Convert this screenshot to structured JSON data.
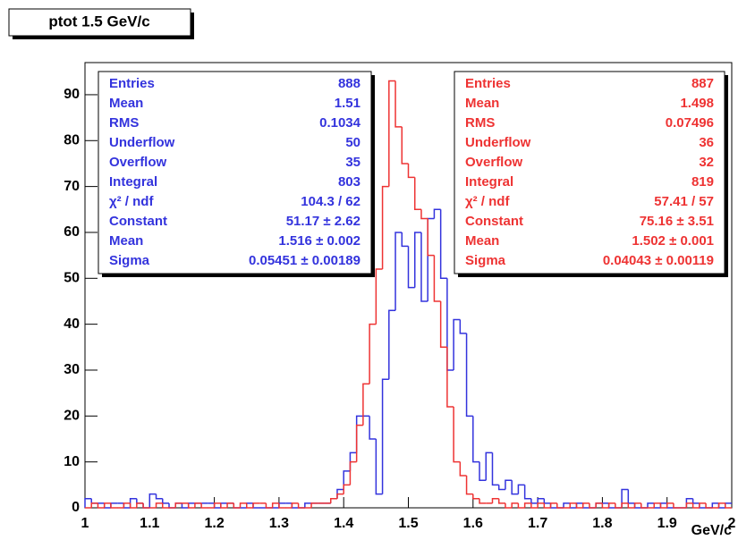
{
  "chart_data": {
    "type": "histogram",
    "title": "ptot 1.5 GeV/c",
    "x_label": "GeV/c",
    "xlim": [
      1,
      2
    ],
    "ylim": [
      0,
      97
    ],
    "xticks": [
      1,
      1.1,
      1.2,
      1.3,
      1.4,
      1.5,
      1.6,
      1.7,
      1.8,
      1.9,
      2
    ],
    "yticks": [
      0,
      10,
      20,
      30,
      40,
      50,
      60,
      70,
      80,
      90
    ],
    "bins": [
      1.0,
      1.01,
      1.02,
      1.03,
      1.04,
      1.05,
      1.06,
      1.07,
      1.08,
      1.09,
      1.1,
      1.11,
      1.12,
      1.13,
      1.14,
      1.15,
      1.16,
      1.17,
      1.18,
      1.19,
      1.2,
      1.21,
      1.22,
      1.23,
      1.24,
      1.25,
      1.26,
      1.27,
      1.28,
      1.29,
      1.3,
      1.31,
      1.32,
      1.33,
      1.34,
      1.35,
      1.36,
      1.37,
      1.38,
      1.39,
      1.4,
      1.41,
      1.42,
      1.43,
      1.44,
      1.45,
      1.46,
      1.47,
      1.48,
      1.49,
      1.5,
      1.51,
      1.52,
      1.53,
      1.54,
      1.55,
      1.56,
      1.57,
      1.58,
      1.59,
      1.6,
      1.61,
      1.62,
      1.63,
      1.64,
      1.65,
      1.66,
      1.67,
      1.68,
      1.69,
      1.7,
      1.71,
      1.72,
      1.73,
      1.74,
      1.75,
      1.76,
      1.77,
      1.78,
      1.79,
      1.8,
      1.81,
      1.82,
      1.83,
      1.84,
      1.85,
      1.86,
      1.87,
      1.88,
      1.89,
      1.9,
      1.91,
      1.92,
      1.93,
      1.94,
      1.95,
      1.96,
      1.97,
      1.98,
      1.99,
      2.0
    ],
    "series": [
      {
        "color": "#3333dd",
        "values": [
          2,
          1,
          1,
          0,
          1,
          1,
          0,
          2,
          1,
          0,
          3,
          2,
          1,
          0,
          1,
          0,
          1,
          1,
          1,
          1,
          0,
          1,
          1,
          0,
          0,
          1,
          0,
          0,
          0,
          0,
          1,
          1,
          0,
          0,
          1,
          1,
          1,
          1,
          2,
          4,
          8,
          12,
          20,
          20,
          15,
          3,
          28,
          43,
          60,
          57,
          48,
          60,
          45,
          63,
          65,
          50,
          30,
          41,
          38,
          20,
          10,
          6,
          12,
          5,
          4,
          6,
          3,
          5,
          2,
          1,
          2,
          1,
          0,
          0,
          1,
          0,
          1,
          0,
          0,
          1,
          1,
          0,
          0,
          4,
          1,
          0,
          0,
          1,
          0,
          1,
          0,
          0,
          0,
          2,
          1,
          0,
          0,
          1,
          0,
          1
        ],
        "stats": [
          {
            "label": "Entries",
            "value": "888"
          },
          {
            "label": "Mean",
            "value": "1.51"
          },
          {
            "label": "RMS",
            "value": "0.1034"
          },
          {
            "label": "Underflow",
            "value": "50"
          },
          {
            "label": "Overflow",
            "value": "35"
          },
          {
            "label": "Integral",
            "value": "803"
          },
          {
            "label": "χ² / ndf",
            "value": "104.3 / 62"
          },
          {
            "label": "Constant",
            "value": "51.17 ± 2.62"
          },
          {
            "label": "Mean",
            "value": "1.516 ± 0.002"
          },
          {
            "label": "Sigma",
            "value": "0.05451 ± 0.00189"
          }
        ]
      },
      {
        "color": "#ee3333",
        "values": [
          0,
          1,
          0,
          1,
          0,
          0,
          1,
          0,
          1,
          0,
          0,
          1,
          0,
          0,
          1,
          1,
          0,
          1,
          0,
          0,
          1,
          0,
          1,
          0,
          1,
          0,
          1,
          1,
          0,
          1,
          0,
          0,
          1,
          0,
          0,
          1,
          1,
          1,
          2,
          3,
          5,
          10,
          18,
          27,
          40,
          52,
          70,
          93,
          83,
          75,
          72,
          65,
          63,
          55,
          45,
          35,
          22,
          10,
          7,
          3,
          2,
          1,
          1,
          2,
          1,
          0,
          1,
          0,
          1,
          0,
          1,
          0,
          1,
          0,
          0,
          1,
          0,
          1,
          0,
          1,
          0,
          1,
          0,
          1,
          0,
          1,
          0,
          0,
          1,
          0,
          1,
          0,
          0,
          1,
          0,
          1,
          0,
          0,
          1,
          0
        ],
        "stats": [
          {
            "label": "Entries",
            "value": "887"
          },
          {
            "label": "Mean",
            "value": "1.498"
          },
          {
            "label": "RMS",
            "value": "0.07496"
          },
          {
            "label": "Underflow",
            "value": "36"
          },
          {
            "label": "Overflow",
            "value": "32"
          },
          {
            "label": "Integral",
            "value": "819"
          },
          {
            "label": "χ² / ndf",
            "value": "57.41 / 57"
          },
          {
            "label": "Constant",
            "value": "75.16 ± 3.51"
          },
          {
            "label": "Mean",
            "value": "1.502 ± 0.001"
          },
          {
            "label": "Sigma",
            "value": "0.04043 ± 0.00119"
          }
        ]
      }
    ]
  }
}
